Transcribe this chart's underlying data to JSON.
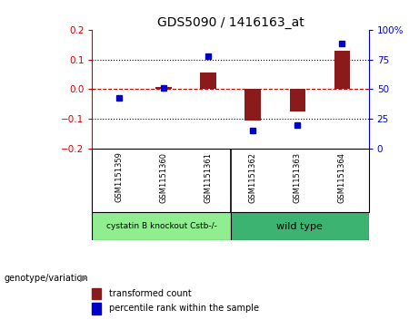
{
  "title": "GDS5090 / 1416163_at",
  "samples": [
    "GSM1151359",
    "GSM1151360",
    "GSM1151361",
    "GSM1151362",
    "GSM1151363",
    "GSM1151364"
  ],
  "bar_values": [
    0.002,
    0.006,
    0.055,
    -0.105,
    -0.075,
    0.13
  ],
  "dot_values_pct": [
    43,
    51,
    78,
    15,
    20,
    88
  ],
  "bar_color": "#8B1A1A",
  "dot_color": "#0000CD",
  "ylim_left": [
    -0.2,
    0.2
  ],
  "ylim_right": [
    0,
    100
  ],
  "yticks_left": [
    -0.2,
    -0.1,
    0.0,
    0.1,
    0.2
  ],
  "yticks_right": [
    0,
    25,
    50,
    75,
    100
  ],
  "dotted_lines": [
    -0.1,
    0.1
  ],
  "group1_label": "cystatin B knockout Cstb-/-",
  "group2_label": "wild type",
  "group1_color": "#90EE90",
  "group2_color": "#3CB371",
  "group_row_label": "genotype/variation",
  "legend_bar": "transformed count",
  "legend_dot": "percentile rank within the sample",
  "bar_width": 0.35,
  "background_color": "#ffffff",
  "plot_bg": "#ffffff",
  "label_color_left": "#CC0000",
  "label_color_right": "#0000CC",
  "sample_bg": "#C8C8C8",
  "title_fontsize": 10
}
